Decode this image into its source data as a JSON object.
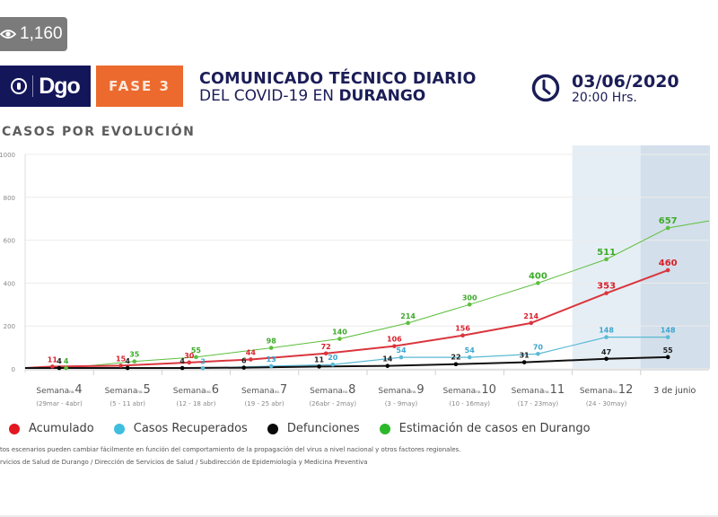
{
  "views": {
    "icon": "eye-icon",
    "count": "1,160"
  },
  "header": {
    "logo_text": "Dgo",
    "logo_icon": "seal-icon",
    "phase_label": "FASE 3",
    "title_line1": "COMUNICADO TÉCNICO DIARIO",
    "title_line2_prefix": "DEL COVID-19 EN ",
    "title_line2_bold": "DURANGO",
    "clock_icon": "clock-icon",
    "date": "03/06/2020",
    "time": "20:00 Hrs."
  },
  "section_title": "CASOS POR EVOLUCIÓN",
  "colors": {
    "navy": "#14165a",
    "orange": "#ec6a2e",
    "acumulado": "#e0323a",
    "recuperados": "#4fb7d8",
    "defunciones": "#111111",
    "estimacion": "#5cbf3c",
    "highlight_light": "#e6eef5",
    "highlight_dark": "#d3dfea"
  },
  "legend": [
    {
      "label": "Acumulado",
      "color": "#e3171f"
    },
    {
      "label": "Casos Recuperados",
      "color": "#3fbede"
    },
    {
      "label": "Defunciones",
      "color": "#0a0a0a"
    },
    {
      "label": "Estimación de casos en Durango",
      "color": "#2db82a"
    }
  ],
  "notes": [
    "tos escenarios pueden cambiar fácilmente en función del comportamiento de la propagación del virus a nivel nacional y otros factores regionales.",
    "rvicios de Salud de Durango / Dirección de Servicios de Salud / Subdirección de Epidemiología y Medicina Preventiva"
  ],
  "chart_data": {
    "type": "line",
    "title": "CASOS POR EVOLUCIÓN",
    "xlabel": "",
    "ylabel": "",
    "ylim": [
      0,
      1000
    ],
    "yticks": [
      0,
      200,
      400,
      600,
      800,
      1000
    ],
    "ytick_labels": [
      "0",
      "200",
      "400",
      "600",
      "800",
      "1000"
    ],
    "grid": true,
    "legend_position": "bottom",
    "categories": [
      {
        "prefix": "Semana",
        "sup": "no.",
        "num": "4",
        "range": "(29mar - 4abr)"
      },
      {
        "prefix": "Semana",
        "sup": "no.",
        "num": "5",
        "range": "(5 - 11 abr)"
      },
      {
        "prefix": "Semana",
        "sup": "no.",
        "num": "6",
        "range": "(12 - 18 abr)"
      },
      {
        "prefix": "Semana",
        "sup": "no.",
        "num": "7",
        "range": "(19 - 25 abr)"
      },
      {
        "prefix": "Semana",
        "sup": "no.",
        "num": "8",
        "range": "(26abr - 2may)"
      },
      {
        "prefix": "Semana",
        "sup": "no.",
        "num": "9",
        "range": "(3 - 9may)"
      },
      {
        "prefix": "Semana",
        "sup": "no.",
        "num": "10",
        "range": "(10 - 16may)"
      },
      {
        "prefix": "Semana",
        "sup": "no.",
        "num": "11",
        "range": "(17 - 23may)"
      },
      {
        "prefix": "Semana",
        "sup": "no.",
        "num": "12",
        "range": "(24 - 30may)"
      },
      {
        "prefix": "",
        "sup": "",
        "num": "3 de junio",
        "range": ""
      }
    ],
    "highlighted_categories": [
      {
        "index": 8,
        "shade": "light"
      },
      {
        "index": 9,
        "shade": "dark"
      }
    ],
    "series": [
      {
        "name": "Estimación de casos en Durango",
        "color": "#5cbf3c",
        "label_color": "#3daa2a",
        "x": [
          3.1,
          4.1,
          5.0,
          6.1,
          7.1,
          8.1,
          9.0,
          10.0,
          11.0,
          11.9
        ],
        "values": [
          4,
          35,
          55,
          98,
          140,
          214,
          300,
          400,
          511,
          657
        ],
        "labels": [
          "4",
          "35",
          "55",
          "98",
          "140",
          "214",
          "300",
          "400",
          "511",
          "657"
        ],
        "extension_value": 690
      },
      {
        "name": "Acumulado",
        "color": "#d9363e",
        "label_color": "#d9202a",
        "x": [
          2.9,
          3.9,
          4.9,
          5.8,
          6.9,
          7.9,
          8.9,
          9.9,
          11.0,
          11.9
        ],
        "values": [
          11,
          15,
          30,
          44,
          72,
          106,
          156,
          214,
          353,
          460
        ],
        "labels": [
          "11",
          "15",
          "30",
          "44",
          "72",
          "106",
          "156",
          "214",
          "353",
          "460"
        ]
      },
      {
        "name": "Casos Recuperados",
        "color": "#5ab9d6",
        "label_color": "#3aa6cf",
        "x": [
          5.1,
          6.1,
          7.0,
          8.0,
          9.0,
          10.0,
          11.0,
          11.9
        ],
        "values": [
          3,
          13,
          20,
          54,
          54,
          70,
          148,
          148
        ],
        "labels": [
          "3",
          "13",
          "20",
          "54",
          "54",
          "70",
          "148",
          "148"
        ]
      },
      {
        "name": "Defunciones",
        "color": "#111111",
        "label_color": "#222222",
        "x": [
          3.0,
          4.0,
          4.8,
          5.7,
          6.8,
          7.8,
          8.8,
          9.8,
          11.0,
          11.9
        ],
        "values": [
          4,
          4,
          4,
          6,
          11,
          14,
          22,
          31,
          47,
          55
        ],
        "labels": [
          "4",
          "4",
          "4",
          "6",
          "11",
          "14",
          "22",
          "31",
          "47",
          "55"
        ]
      }
    ]
  }
}
